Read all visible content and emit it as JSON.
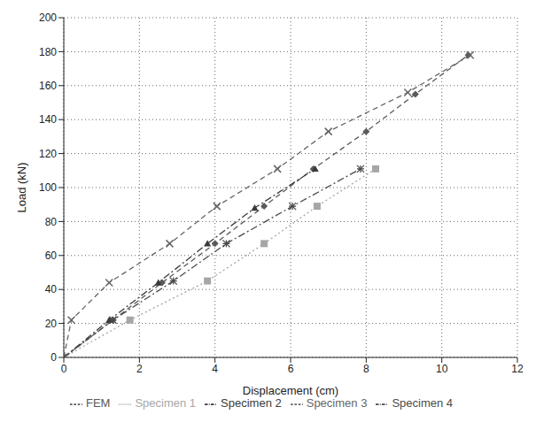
{
  "chart_data": {
    "type": "line",
    "x_label": "Displacement (cm)",
    "y_label": "Load (kN)",
    "xlim": [
      0,
      12
    ],
    "xticks": [
      0,
      2,
      4,
      6,
      8,
      10,
      12
    ],
    "ylim": [
      0,
      200
    ],
    "yticks": [
      0,
      20,
      40,
      60,
      80,
      100,
      120,
      140,
      160,
      180,
      200
    ],
    "grid": true,
    "legend": "bottom",
    "series": [
      {
        "name": "FEM",
        "color": "#5a5a5a",
        "marker": "diamond",
        "line_style": "dashed",
        "x": [
          0,
          1.3,
          2.6,
          4.0,
          5.3,
          6.6,
          8.0,
          9.3,
          10.7
        ],
        "values": [
          0,
          22,
          44,
          67,
          89,
          111,
          133,
          155,
          178
        ]
      },
      {
        "name": "Specimen 1",
        "color": "#a6a6a6",
        "marker": "square",
        "line_style": "dotted",
        "x": [
          0,
          1.75,
          3.8,
          5.3,
          6.7,
          8.25
        ],
        "values": [
          0,
          22,
          45,
          67,
          89,
          111
        ]
      },
      {
        "name": "Specimen 2",
        "color": "#3a3a3a",
        "marker": "triangle",
        "line_style": "dashdot",
        "x": [
          0,
          1.2,
          2.5,
          3.8,
          5.05,
          6.65
        ],
        "values": [
          0,
          22,
          44,
          67,
          88,
          111
        ]
      },
      {
        "name": "Specimen 3",
        "color": "#666666",
        "marker": "x",
        "line_style": "dashed",
        "x": [
          0,
          0.2,
          1.2,
          2.8,
          4.05,
          5.65,
          7.0,
          9.1,
          10.75
        ],
        "values": [
          0,
          22,
          44,
          67,
          89,
          111,
          133,
          156,
          178
        ]
      },
      {
        "name": "Specimen 4",
        "color": "#4a4a4a",
        "marker": "star",
        "line_style": "dashdot",
        "x": [
          0,
          1.3,
          2.9,
          4.3,
          6.05,
          7.85
        ],
        "values": [
          0,
          22,
          45,
          67,
          89,
          111
        ]
      }
    ]
  }
}
